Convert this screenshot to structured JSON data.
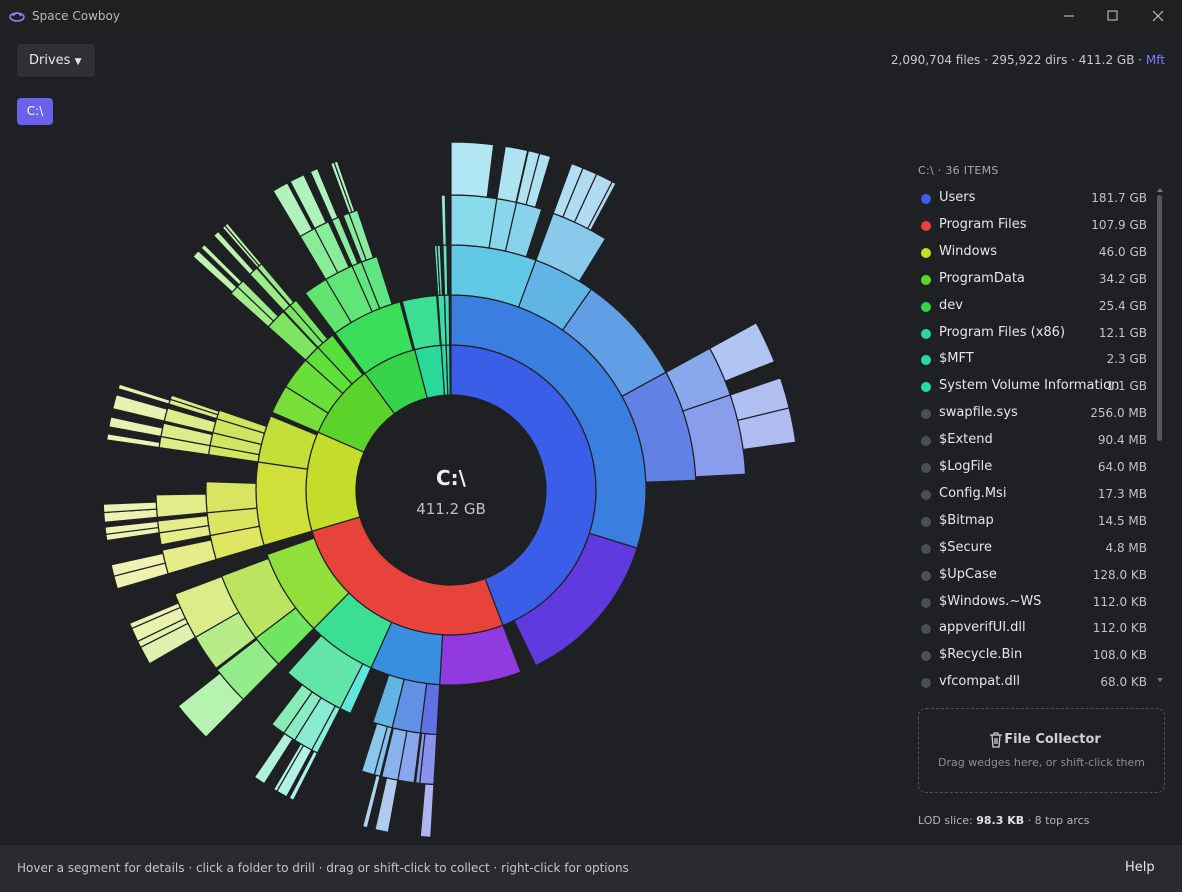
{
  "window": {
    "title": "Space Cowboy"
  },
  "toolbar": {
    "drives": "Drives",
    "stats": "2,090,704 files · 295,922 dirs · 411.2 GB ·",
    "engine": "Mft"
  },
  "breadcrumb": "C:\\",
  "sunburst": {
    "center_label": "C:\\",
    "center_size": "411.2 GB"
  },
  "list": {
    "header": "C:\\ · 36 ITEMS",
    "items": [
      {
        "name": "Users",
        "size": "181.7 GB",
        "color": "#3a5ee8"
      },
      {
        "name": "Program Files",
        "size": "107.9 GB",
        "color": "#e8433a"
      },
      {
        "name": "Windows",
        "size": "46.0 GB",
        "color": "#c3dd2a"
      },
      {
        "name": "ProgramData",
        "size": "34.2 GB",
        "color": "#5ad42a"
      },
      {
        "name": "dev",
        "size": "25.4 GB",
        "color": "#36d44a"
      },
      {
        "name": "Program Files (x86)",
        "size": "12.1 GB",
        "color": "#2ad89a"
      },
      {
        "name": "$MFT",
        "size": "2.3 GB",
        "color": "#2ad8a4"
      },
      {
        "name": "System Volume Information",
        "size": "1.1 GB",
        "color": "#2ad8b0"
      },
      {
        "name": "swapfile.sys",
        "size": "256.0 MB",
        "color": "#4a4e58"
      },
      {
        "name": "$Extend",
        "size": "90.4 MB",
        "color": "#4a4e58"
      },
      {
        "name": "$LogFile",
        "size": "64.0 MB",
        "color": "#4a4e58"
      },
      {
        "name": "Config.Msi",
        "size": "17.3 MB",
        "color": "#4a4e58"
      },
      {
        "name": "$Bitmap",
        "size": "14.5 MB",
        "color": "#4a4e58"
      },
      {
        "name": "$Secure",
        "size": "4.8 MB",
        "color": "#4a4e58"
      },
      {
        "name": "$UpCase",
        "size": "128.0 KB",
        "color": "#4a4e58"
      },
      {
        "name": "$Windows.~WS",
        "size": "112.0 KB",
        "color": "#4a4e58"
      },
      {
        "name": "appverifUI.dll",
        "size": "112.0 KB",
        "color": "#4a4e58"
      },
      {
        "name": "$Recycle.Bin",
        "size": "108.0 KB",
        "color": "#4a4e58"
      },
      {
        "name": "vfcompat.dll",
        "size": "68.0 KB",
        "color": "#4a4e58"
      }
    ]
  },
  "collector": {
    "title": "File Collector",
    "hint": "Drag wedges here, or shift-click them"
  },
  "lod": {
    "prefix": "LOD slice:",
    "size": "98.3 KB",
    "suffix": "· 8 top arcs"
  },
  "status": {
    "hint": "Hover a segment for details · click a folder to drill · drag or shift-click to collect · right-click for options",
    "help": "Help"
  }
}
